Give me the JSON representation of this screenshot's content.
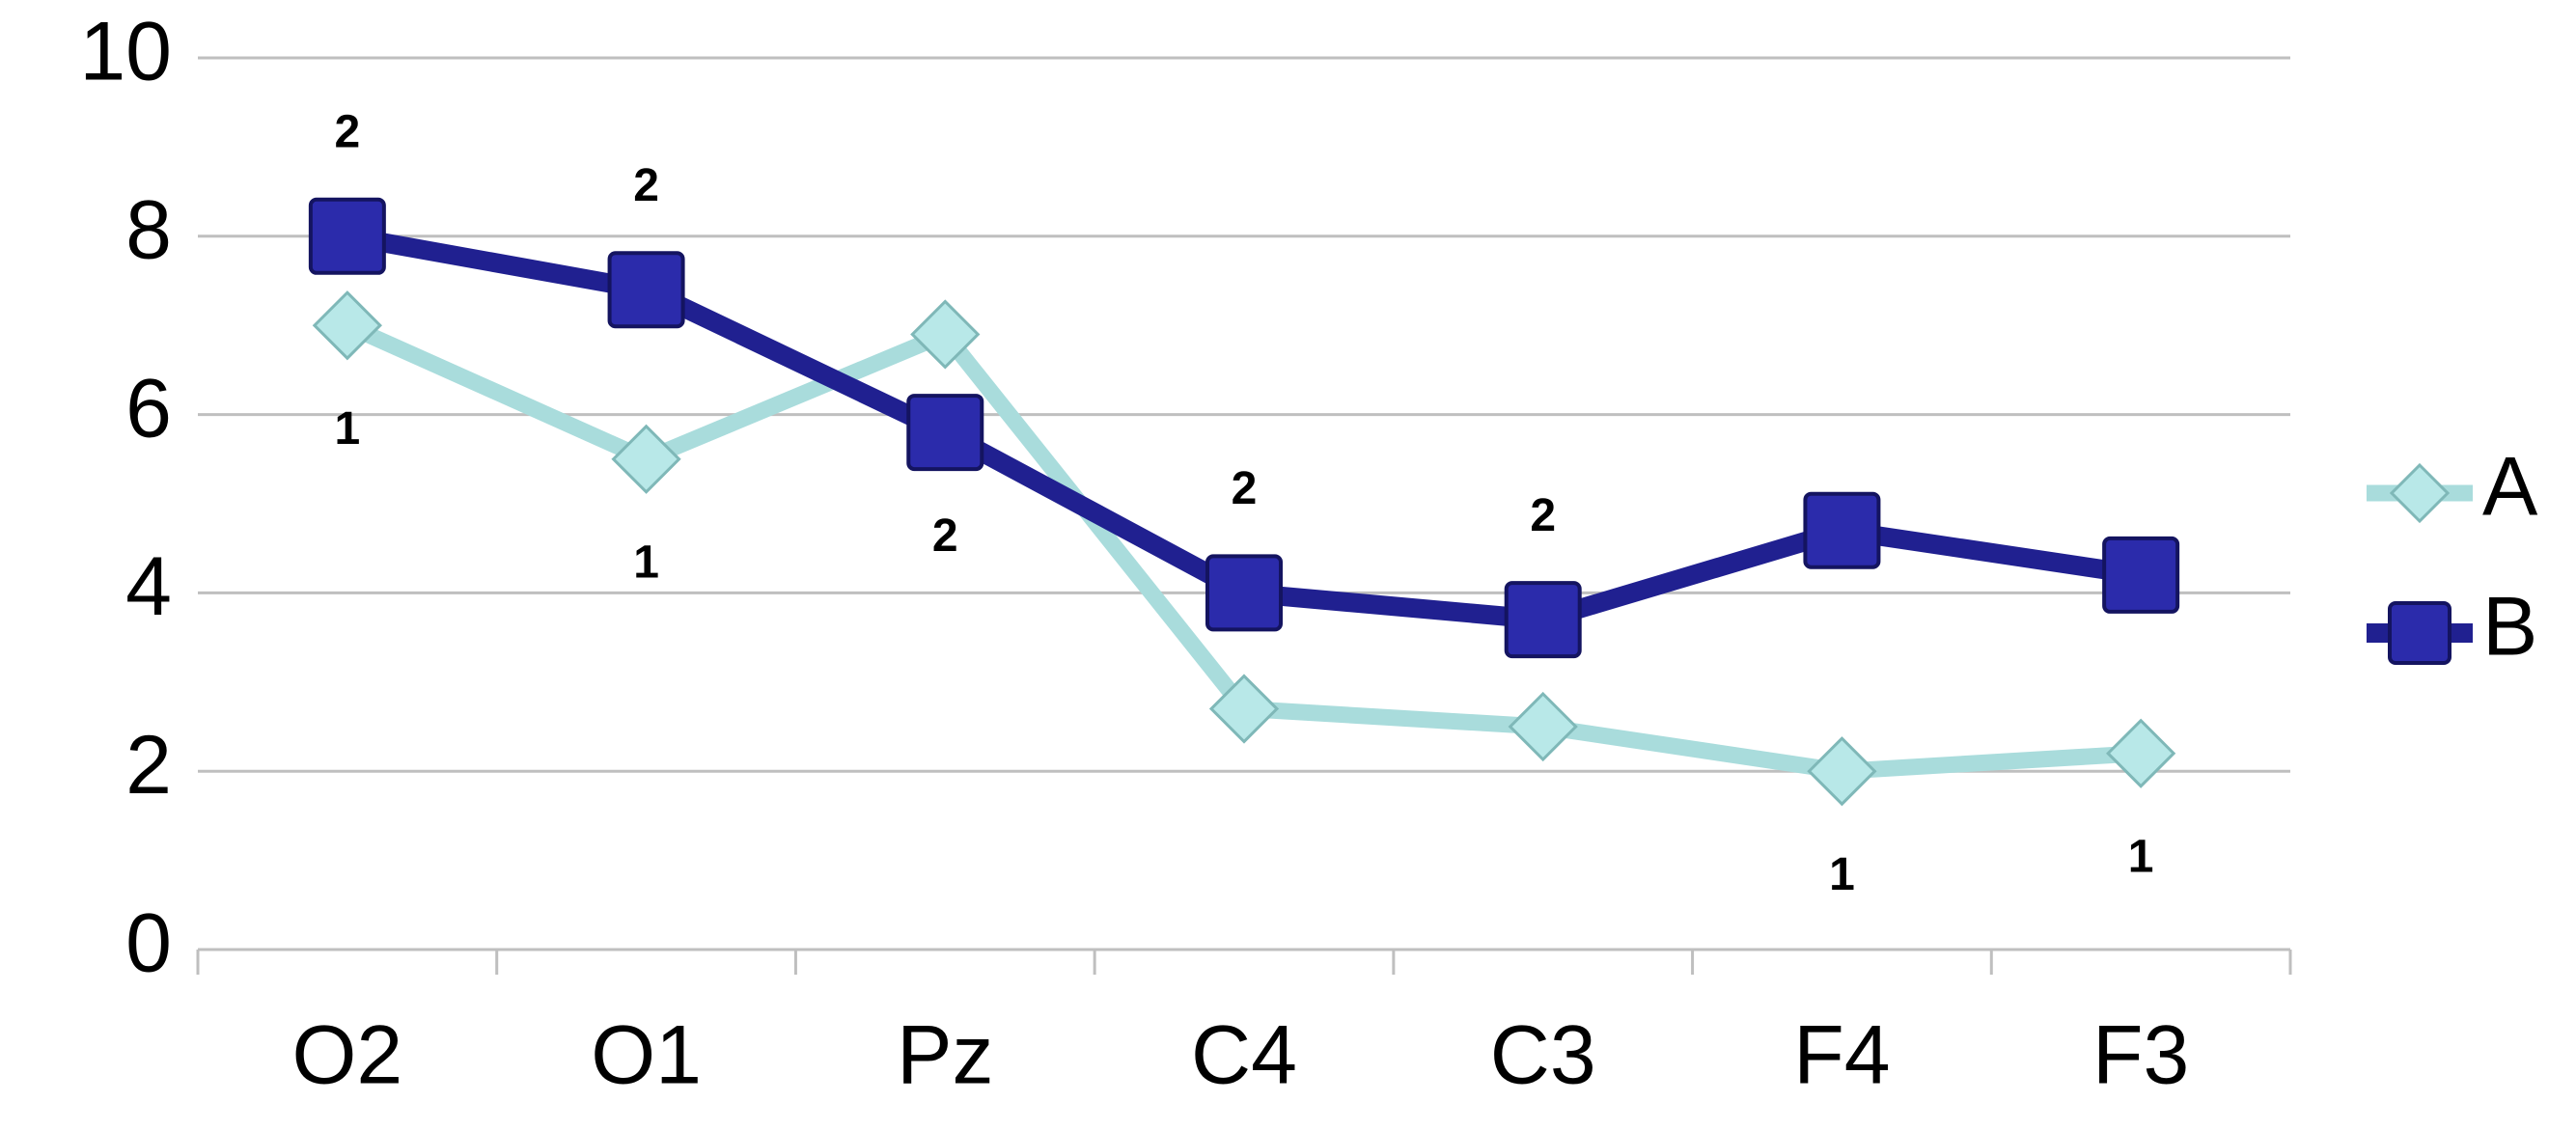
{
  "chart_data": {
    "type": "line",
    "categories": [
      "O2",
      "O1",
      "Pz",
      "C4",
      "C3",
      "F4",
      "F3"
    ],
    "series": [
      {
        "name": "A",
        "color": "#a9dcdc",
        "marker": "diamond",
        "marker_color": "#b8e8e8",
        "values": [
          7.0,
          5.5,
          6.9,
          2.7,
          2.5,
          2.0,
          2.2
        ],
        "point_labels": [
          "1",
          "1",
          null,
          null,
          null,
          "1",
          "1"
        ]
      },
      {
        "name": "B",
        "color": "#202090",
        "marker": "square",
        "marker_color": "#2b2bab",
        "values": [
          8.0,
          7.4,
          5.8,
          4.0,
          3.7,
          4.7,
          4.2
        ],
        "point_labels": [
          "2",
          "2",
          "2",
          "2",
          "2",
          null,
          null
        ]
      }
    ],
    "ylim": [
      0,
      10
    ],
    "yticks": [
      0,
      2,
      4,
      6,
      8,
      10
    ],
    "grid": true,
    "legend": "right"
  }
}
